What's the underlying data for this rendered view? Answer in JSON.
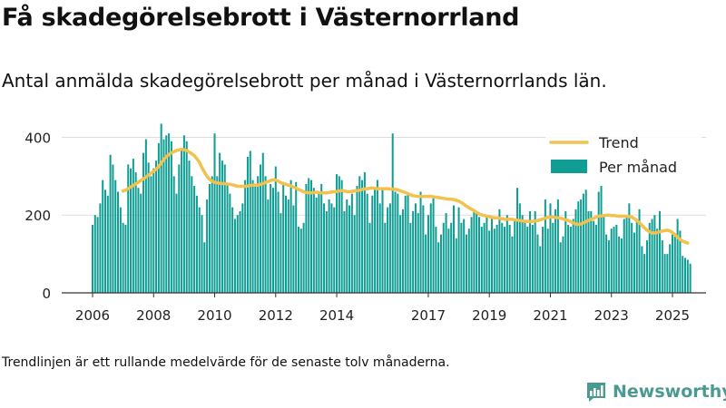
{
  "header": {
    "title": "Få skadegörelsebrott i Västernorrland",
    "subtitle": "Antal anmälda skadegörelsebrott per månad i Västernorrlands län."
  },
  "footer": {
    "note": "Trendlinjen är ett rullande medelvärde för de senaste tolv månaderna.",
    "brand": "Newsworthy"
  },
  "colors": {
    "bars": "#0f9d94",
    "trend": "#f2c14e",
    "grid": "#dddddd",
    "axis": "#333333",
    "brand": "#4a9a8f"
  },
  "chart_data": {
    "type": "bar",
    "title": "",
    "xlabel": "",
    "ylabel": "",
    "ylim": [
      0,
      450
    ],
    "y_ticks": [
      "0",
      "200",
      "400"
    ],
    "x_ticks": [
      "2006",
      "2008",
      "2010",
      "2012",
      "2014",
      "2017",
      "2019",
      "2021",
      "2023",
      "2025"
    ],
    "legend_position": "top-right",
    "grid": true,
    "legend": [
      {
        "label": "Trend",
        "kind": "line"
      },
      {
        "label": "Per månad",
        "kind": "bar"
      }
    ],
    "series": [
      {
        "name": "Per månad",
        "type": "bar",
        "start": "2006-01",
        "values": [
          175,
          200,
          195,
          230,
          290,
          265,
          250,
          355,
          330,
          290,
          260,
          220,
          180,
          175,
          330,
          320,
          345,
          310,
          270,
          255,
          360,
          395,
          335,
          300,
          320,
          340,
          385,
          435,
          395,
          405,
          410,
          390,
          300,
          255,
          330,
          365,
          405,
          390,
          340,
          300,
          275,
          250,
          220,
          200,
          130,
          240,
          280,
          300,
          410,
          300,
          360,
          340,
          330,
          280,
          255,
          220,
          190,
          200,
          210,
          230,
          290,
          350,
          365,
          290,
          280,
          300,
          330,
          360,
          300,
          240,
          280,
          270,
          325,
          260,
          205,
          285,
          250,
          240,
          290,
          225,
          285,
          170,
          165,
          180,
          280,
          295,
          290,
          270,
          245,
          260,
          280,
          230,
          210,
          240,
          230,
          220,
          305,
          300,
          290,
          210,
          240,
          225,
          255,
          200,
          275,
          300,
          290,
          310,
          255,
          180,
          250,
          270,
          290,
          230,
          265,
          180,
          220,
          230,
          410,
          260,
          255,
          200,
          215,
          250,
          255,
          180,
          210,
          230,
          205,
          260,
          225,
          150,
          200,
          230,
          250,
          170,
          130,
          150,
          180,
          205,
          165,
          180,
          225,
          140,
          220,
          180,
          190,
          150,
          165,
          195,
          215,
          210,
          195,
          170,
          180,
          200,
          160,
          195,
          165,
          175,
          215,
          180,
          170,
          200,
          175,
          145,
          190,
          270,
          230,
          200,
          185,
          170,
          210,
          175,
          210,
          150,
          120,
          170,
          240,
          165,
          230,
          180,
          215,
          240,
          130,
          145,
          210,
          175,
          170,
          190,
          215,
          235,
          240,
          255,
          265,
          210,
          210,
          185,
          175,
          260,
          275,
          195,
          150,
          135,
          165,
          170,
          175,
          145,
          140,
          190,
          200,
          230,
          180,
          155,
          190,
          215,
          120,
          100,
          135,
          180,
          190,
          200,
          165,
          210,
          135,
          100,
          100,
          125,
          150,
          145,
          190,
          160,
          95,
          90,
          85,
          75
        ]
      },
      {
        "name": "Trend",
        "type": "line",
        "start": "2007-01",
        "values": [
          262,
          264,
          268,
          272,
          276,
          280,
          285,
          289,
          293,
          298,
          303,
          308,
          313,
          318,
          325,
          334,
          343,
          350,
          356,
          360,
          363,
          366,
          368,
          369,
          368,
          366,
          362,
          358,
          353,
          345,
          336,
          322,
          310,
          300,
          292,
          287,
          284,
          283,
          282,
          281,
          281,
          280,
          279,
          278,
          276,
          274,
          274,
          274,
          274,
          275,
          276,
          277,
          277,
          277,
          279,
          281,
          284,
          286,
          289,
          291,
          290,
          287,
          283,
          281,
          279,
          277,
          275,
          272,
          269,
          266,
          263,
          260,
          258,
          257,
          257,
          258,
          259,
          258,
          257,
          257,
          257,
          258,
          259,
          260,
          261,
          262,
          263,
          262,
          260,
          260,
          261,
          262,
          263,
          264,
          266,
          267,
          268,
          269,
          270,
          269,
          268,
          268,
          268,
          268,
          268,
          267,
          267,
          266,
          265,
          262,
          260,
          258,
          255,
          252,
          250,
          249,
          248,
          248,
          248,
          248,
          248,
          248,
          247,
          246,
          245,
          244,
          243,
          242,
          241,
          241,
          240,
          238,
          236,
          232,
          228,
          223,
          219,
          215,
          211,
          207,
          203,
          200,
          199,
          197,
          196,
          194,
          193,
          193,
          192,
          191,
          189,
          189,
          189,
          189,
          188,
          187,
          186,
          185,
          184,
          184,
          183,
          184,
          185,
          186,
          188,
          190,
          192,
          194,
          195,
          195,
          194,
          193,
          192,
          190,
          188,
          186,
          183,
          180,
          177,
          176,
          177,
          180,
          183,
          186,
          189,
          192,
          195,
          197,
          198,
          199,
          200,
          200,
          199,
          199,
          198,
          197,
          197,
          197,
          197,
          196,
          195,
          191,
          186,
          180,
          174,
          167,
          161,
          157,
          154,
          154,
          155,
          157,
          159,
          160,
          161,
          159,
          155,
          150,
          143,
          137,
          133,
          130,
          128
        ]
      }
    ]
  }
}
